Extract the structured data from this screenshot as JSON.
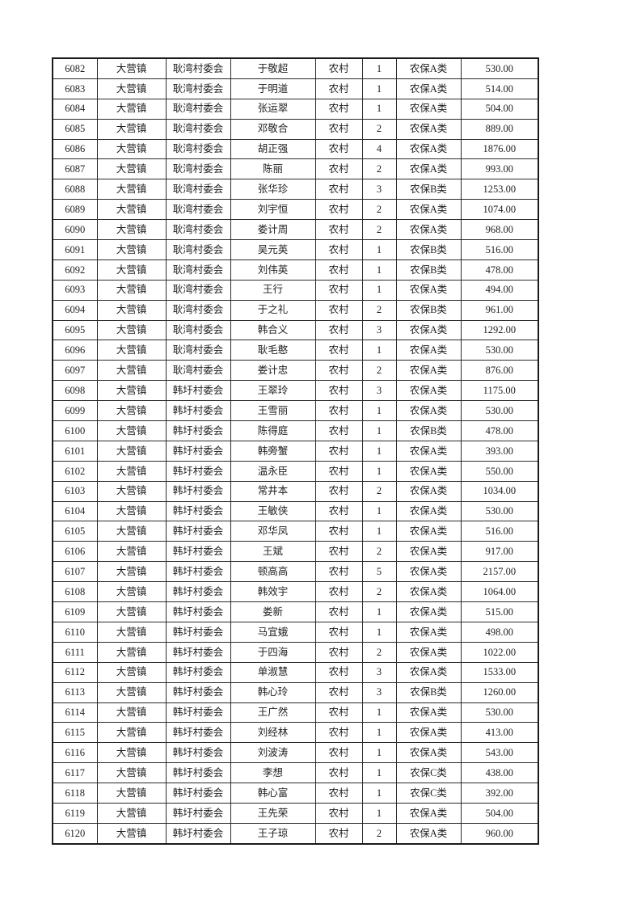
{
  "page": {
    "background_color": "#ffffff",
    "text_color": "#1f1f1f",
    "border_color": "#2a2a2a"
  },
  "table": {
    "rows": [
      [
        "6082",
        "大营镇",
        "耿湾村委会",
        "于敬超",
        "农村",
        "1",
        "农保A类",
        "530.00"
      ],
      [
        "6083",
        "大营镇",
        "耿湾村委会",
        "于明道",
        "农村",
        "1",
        "农保A类",
        "514.00"
      ],
      [
        "6084",
        "大营镇",
        "耿湾村委会",
        "张运翠",
        "农村",
        "1",
        "农保A类",
        "504.00"
      ],
      [
        "6085",
        "大营镇",
        "耿湾村委会",
        "邓敬合",
        "农村",
        "2",
        "农保A类",
        "889.00"
      ],
      [
        "6086",
        "大营镇",
        "耿湾村委会",
        "胡正强",
        "农村",
        "4",
        "农保A类",
        "1876.00"
      ],
      [
        "6087",
        "大营镇",
        "耿湾村委会",
        "陈丽",
        "农村",
        "2",
        "农保A类",
        "993.00"
      ],
      [
        "6088",
        "大营镇",
        "耿湾村委会",
        "张华珍",
        "农村",
        "3",
        "农保B类",
        "1253.00"
      ],
      [
        "6089",
        "大营镇",
        "耿湾村委会",
        "刘宇恒",
        "农村",
        "2",
        "农保A类",
        "1074.00"
      ],
      [
        "6090",
        "大营镇",
        "耿湾村委会",
        "娄计周",
        "农村",
        "2",
        "农保A类",
        "968.00"
      ],
      [
        "6091",
        "大营镇",
        "耿湾村委会",
        "吴元英",
        "农村",
        "1",
        "农保B类",
        "516.00"
      ],
      [
        "6092",
        "大营镇",
        "耿湾村委会",
        "刘伟英",
        "农村",
        "1",
        "农保B类",
        "478.00"
      ],
      [
        "6093",
        "大营镇",
        "耿湾村委会",
        "王行",
        "农村",
        "1",
        "农保A类",
        "494.00"
      ],
      [
        "6094",
        "大营镇",
        "耿湾村委会",
        "于之礼",
        "农村",
        "2",
        "农保B类",
        "961.00"
      ],
      [
        "6095",
        "大营镇",
        "耿湾村委会",
        "韩合义",
        "农村",
        "3",
        "农保A类",
        "1292.00"
      ],
      [
        "6096",
        "大营镇",
        "耿湾村委会",
        "耿毛憨",
        "农村",
        "1",
        "农保A类",
        "530.00"
      ],
      [
        "6097",
        "大营镇",
        "耿湾村委会",
        "娄计忠",
        "农村",
        "2",
        "农保A类",
        "876.00"
      ],
      [
        "6098",
        "大营镇",
        "韩圩村委会",
        "王翠玲",
        "农村",
        "3",
        "农保A类",
        "1175.00"
      ],
      [
        "6099",
        "大营镇",
        "韩圩村委会",
        "王雪丽",
        "农村",
        "1",
        "农保A类",
        "530.00"
      ],
      [
        "6100",
        "大营镇",
        "韩圩村委会",
        "陈得庭",
        "农村",
        "1",
        "农保B类",
        "478.00"
      ],
      [
        "6101",
        "大营镇",
        "韩圩村委会",
        "韩旁蟹",
        "农村",
        "1",
        "农保A类",
        "393.00"
      ],
      [
        "6102",
        "大营镇",
        "韩圩村委会",
        "温永臣",
        "农村",
        "1",
        "农保A类",
        "550.00"
      ],
      [
        "6103",
        "大营镇",
        "韩圩村委会",
        "常井本",
        "农村",
        "2",
        "农保A类",
        "1034.00"
      ],
      [
        "6104",
        "大营镇",
        "韩圩村委会",
        "王敏侠",
        "农村",
        "1",
        "农保A类",
        "530.00"
      ],
      [
        "6105",
        "大营镇",
        "韩圩村委会",
        "邓华凤",
        "农村",
        "1",
        "农保A类",
        "516.00"
      ],
      [
        "6106",
        "大营镇",
        "韩圩村委会",
        "王斌",
        "农村",
        "2",
        "农保A类",
        "917.00"
      ],
      [
        "6107",
        "大营镇",
        "韩圩村委会",
        "顿高高",
        "农村",
        "5",
        "农保A类",
        "2157.00"
      ],
      [
        "6108",
        "大营镇",
        "韩圩村委会",
        "韩效宇",
        "农村",
        "2",
        "农保A类",
        "1064.00"
      ],
      [
        "6109",
        "大营镇",
        "韩圩村委会",
        "娄新",
        "农村",
        "1",
        "农保A类",
        "515.00"
      ],
      [
        "6110",
        "大营镇",
        "韩圩村委会",
        "马宜娥",
        "农村",
        "1",
        "农保A类",
        "498.00"
      ],
      [
        "6111",
        "大营镇",
        "韩圩村委会",
        "于四海",
        "农村",
        "2",
        "农保A类",
        "1022.00"
      ],
      [
        "6112",
        "大营镇",
        "韩圩村委会",
        "单淑慧",
        "农村",
        "3",
        "农保A类",
        "1533.00"
      ],
      [
        "6113",
        "大营镇",
        "韩圩村委会",
        "韩心玲",
        "农村",
        "3",
        "农保B类",
        "1260.00"
      ],
      [
        "6114",
        "大营镇",
        "韩圩村委会",
        "王广然",
        "农村",
        "1",
        "农保A类",
        "530.00"
      ],
      [
        "6115",
        "大营镇",
        "韩圩村委会",
        "刘经林",
        "农村",
        "1",
        "农保A类",
        "413.00"
      ],
      [
        "6116",
        "大营镇",
        "韩圩村委会",
        "刘波涛",
        "农村",
        "1",
        "农保A类",
        "543.00"
      ],
      [
        "6117",
        "大营镇",
        "韩圩村委会",
        "李想",
        "农村",
        "1",
        "农保C类",
        "438.00"
      ],
      [
        "6118",
        "大营镇",
        "韩圩村委会",
        "韩心富",
        "农村",
        "1",
        "农保C类",
        "392.00"
      ],
      [
        "6119",
        "大营镇",
        "韩圩村委会",
        "王先荣",
        "农村",
        "1",
        "农保A类",
        "504.00"
      ],
      [
        "6120",
        "大营镇",
        "韩圩村委会",
        "王子琼",
        "农村",
        "2",
        "农保A类",
        "960.00"
      ]
    ]
  }
}
